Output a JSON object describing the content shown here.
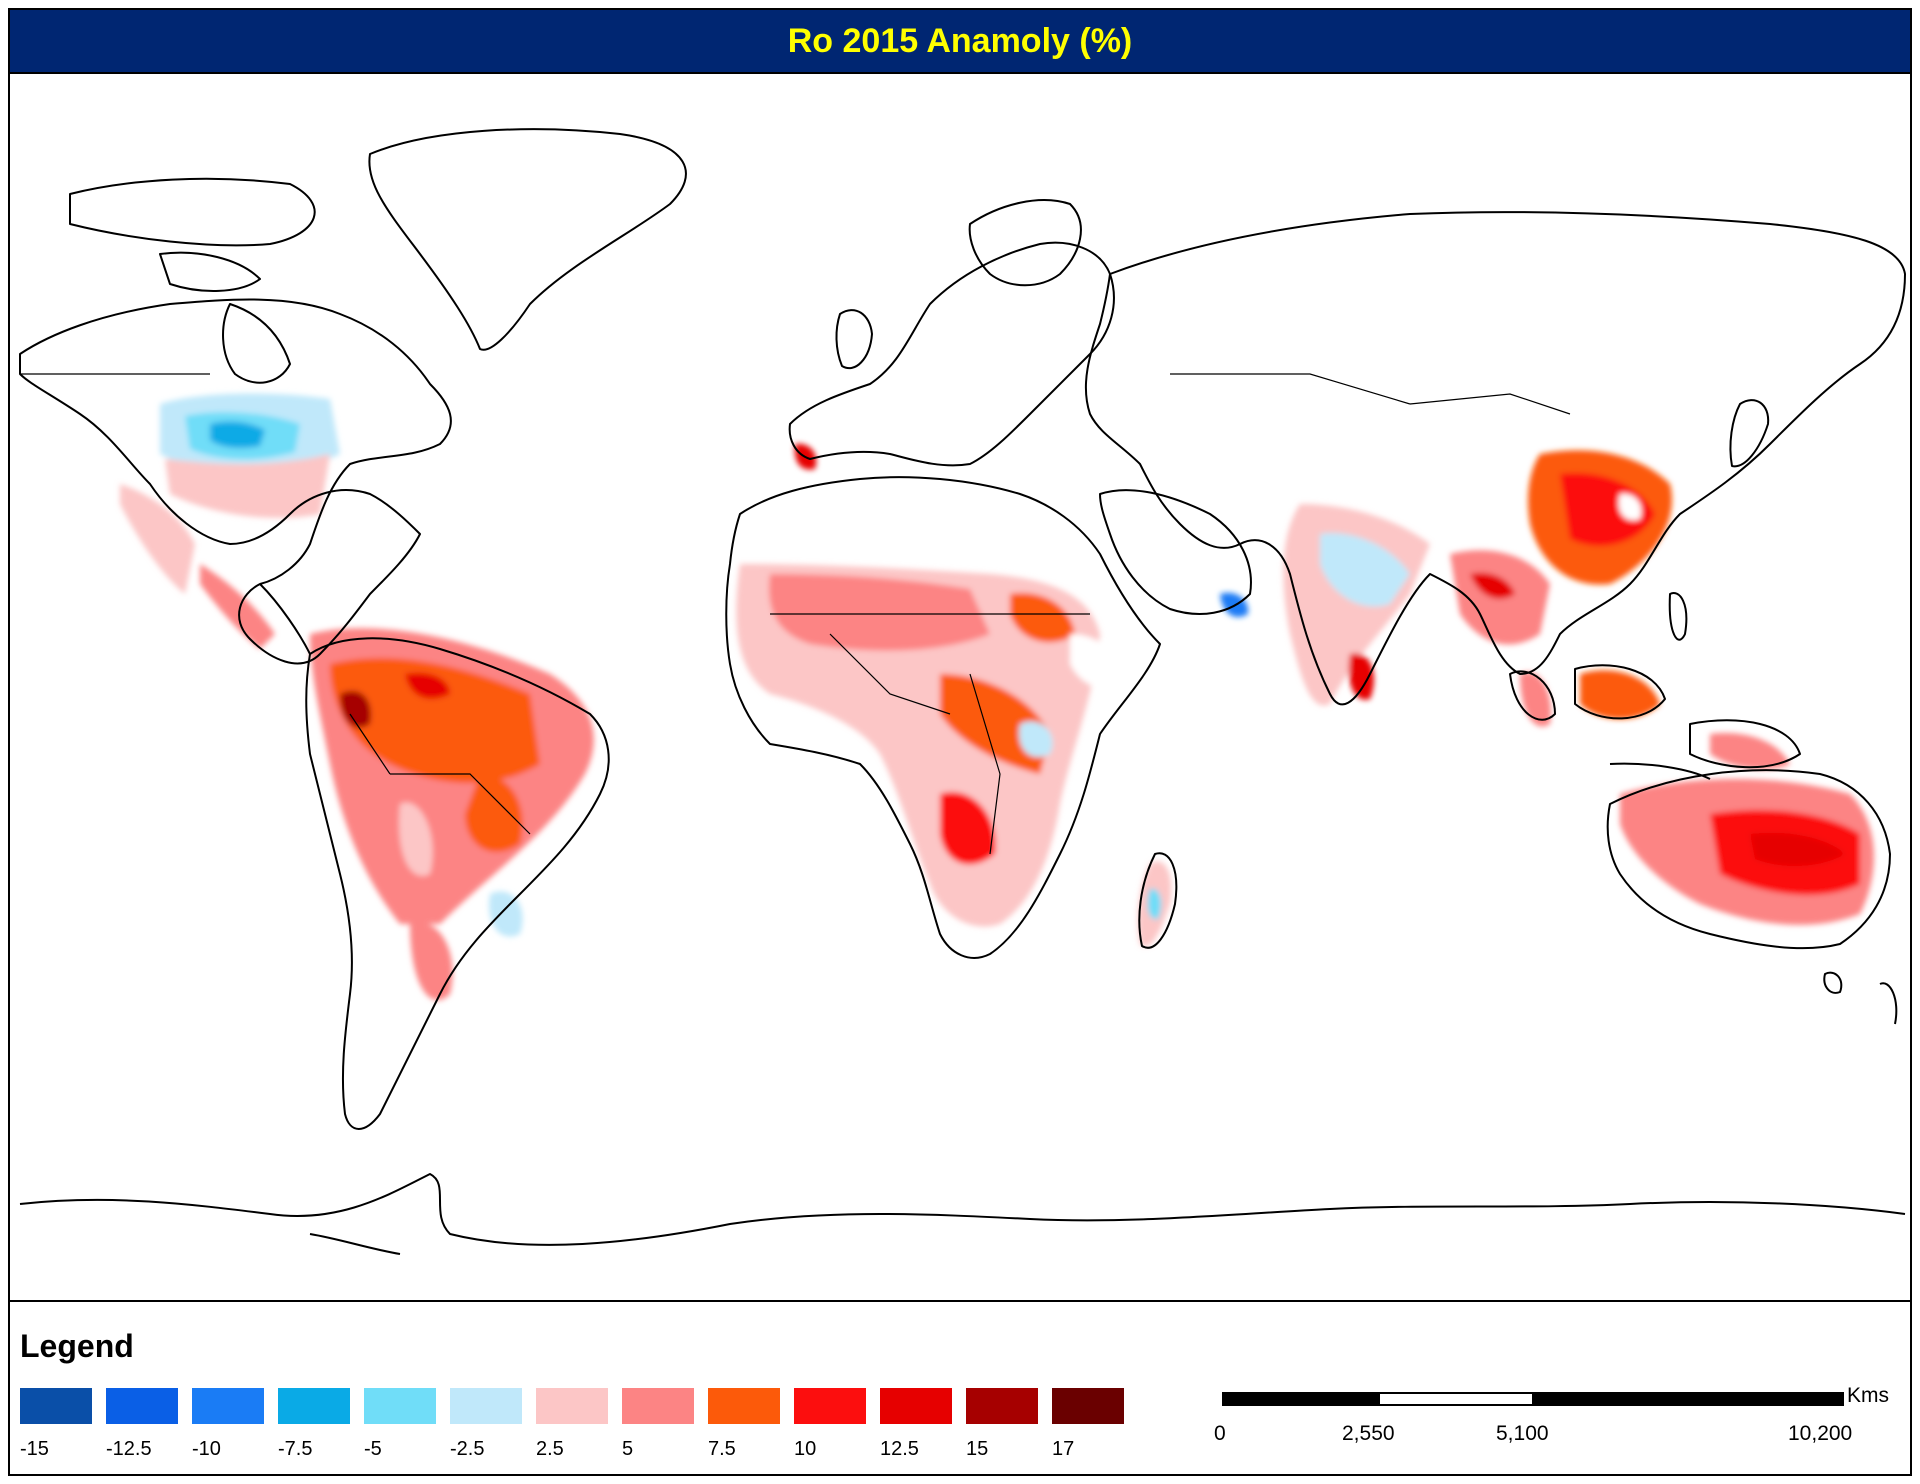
{
  "title": "Ro 2015 Anamoly (%)",
  "legend": {
    "title": "Legend",
    "classes": [
      {
        "label": "-15",
        "color": "#0a4fa8"
      },
      {
        "label": "-12.5",
        "color": "#0a5fe6"
      },
      {
        "label": "-10",
        "color": "#1a7cf5"
      },
      {
        "label": "-7.5",
        "color": "#0aaae6"
      },
      {
        "label": "-5",
        "color": "#70ddf8"
      },
      {
        "label": "-2.5",
        "color": "#c0e8fa"
      },
      {
        "label": "2.5",
        "color": "#fcc6c6"
      },
      {
        "label": "5",
        "color": "#fc8484"
      },
      {
        "label": "7.5",
        "color": "#fc5a0a"
      },
      {
        "label": "10",
        "color": "#fc0e0e"
      },
      {
        "label": "12.5",
        "color": "#e60000"
      },
      {
        "label": "15",
        "color": "#a60000"
      },
      {
        "label": "17",
        "color": "#6a0000"
      }
    ]
  },
  "scale_bar": {
    "unit": "Kms",
    "labels": [
      "0",
      "2,550",
      "5,100",
      "10,200"
    ]
  }
}
